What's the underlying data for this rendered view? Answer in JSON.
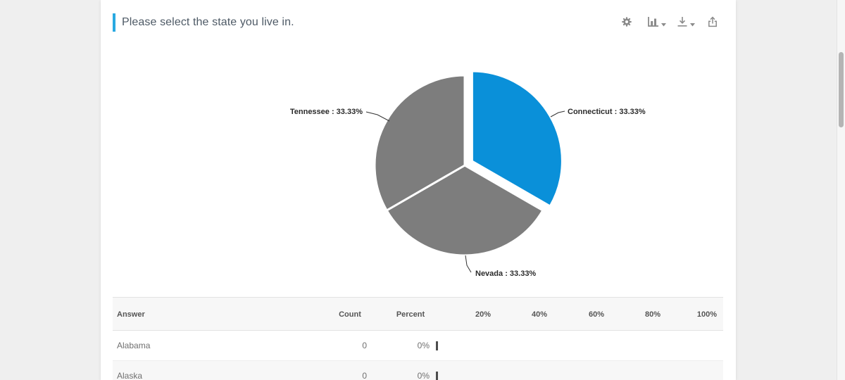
{
  "question": {
    "title": "Please select the state you live in.",
    "accent_color": "#29a9e1"
  },
  "toolbar": {
    "icons": [
      "settings",
      "chart-type",
      "download",
      "export-share"
    ]
  },
  "chart_data": {
    "type": "pie",
    "title": "Please select the state you live in.",
    "direction": "clockwise",
    "start_angle_deg": 0,
    "legend": "none",
    "labels_style": "outside-leader-lines",
    "slices": [
      {
        "label": "Connecticut",
        "value": 33.33,
        "display": "Connecticut : 33.33%",
        "color": "#0a90d9",
        "exploded": true
      },
      {
        "label": "Nevada",
        "value": 33.33,
        "display": "Nevada : 33.33%",
        "color": "#7d7d7d",
        "exploded": false
      },
      {
        "label": "Tennessee",
        "value": 33.33,
        "display": "Tennessee : 33.33%",
        "color": "#7d7d7d",
        "exploded": false
      }
    ]
  },
  "table": {
    "headers": {
      "answer": "Answer",
      "count": "Count",
      "percent": "Percent"
    },
    "scale_ticks": [
      "20%",
      "40%",
      "60%",
      "80%",
      "100%"
    ],
    "rows": [
      {
        "answer": "Alabama",
        "count": "0",
        "percent": "0%",
        "bar_value": 0
      },
      {
        "answer": "Alaska",
        "count": "0",
        "percent": "0%",
        "bar_value": 0
      }
    ]
  }
}
